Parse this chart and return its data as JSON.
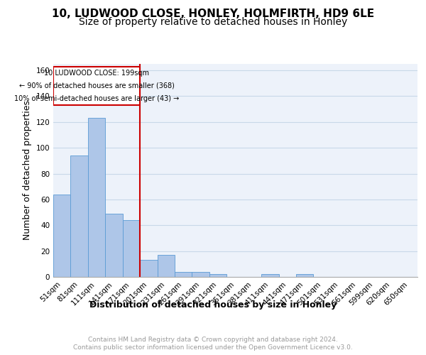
{
  "title1": "10, LUDWOOD CLOSE, HONLEY, HOLMFIRTH, HD9 6LE",
  "title2": "Size of property relative to detached houses in Honley",
  "xlabel": "Distribution of detached houses by size in Honley",
  "ylabel": "Number of detached properties",
  "bar_labels": [
    "51sqm",
    "81sqm",
    "111sqm",
    "141sqm",
    "171sqm",
    "201sqm",
    "231sqm",
    "261sqm",
    "291sqm",
    "321sqm",
    "351sqm",
    "381sqm",
    "411sqm",
    "441sqm",
    "471sqm",
    "501sqm",
    "531sqm",
    "561sqm",
    "599sqm",
    "620sqm",
    "650sqm"
  ],
  "bar_values": [
    64,
    94,
    123,
    49,
    44,
    13,
    17,
    4,
    4,
    2,
    0,
    0,
    2,
    0,
    2,
    0,
    0,
    0,
    0,
    0,
    0
  ],
  "bar_color": "#aec6e8",
  "bar_edge_color": "#5b9bd5",
  "grid_color": "#c8d8e8",
  "background_color": "#edf2fa",
  "marker_line_color": "#cc0000",
  "annotation_line1": "10 LUDWOOD CLOSE: 199sqm",
  "annotation_line2": "← 90% of detached houses are smaller (368)",
  "annotation_line3": "10% of semi-detached houses are larger (43) →",
  "annotation_box_color": "#cc0000",
  "ylim": [
    0,
    165
  ],
  "yticks": [
    0,
    20,
    40,
    60,
    80,
    100,
    120,
    140,
    160
  ],
  "footer_line1": "Contains HM Land Registry data © Crown copyright and database right 2024.",
  "footer_line2": "Contains public sector information licensed under the Open Government Licence v3.0.",
  "footer_color": "#999999",
  "title_fontsize": 11,
  "subtitle_fontsize": 10,
  "axis_label_fontsize": 9,
  "tick_fontsize": 7.5
}
